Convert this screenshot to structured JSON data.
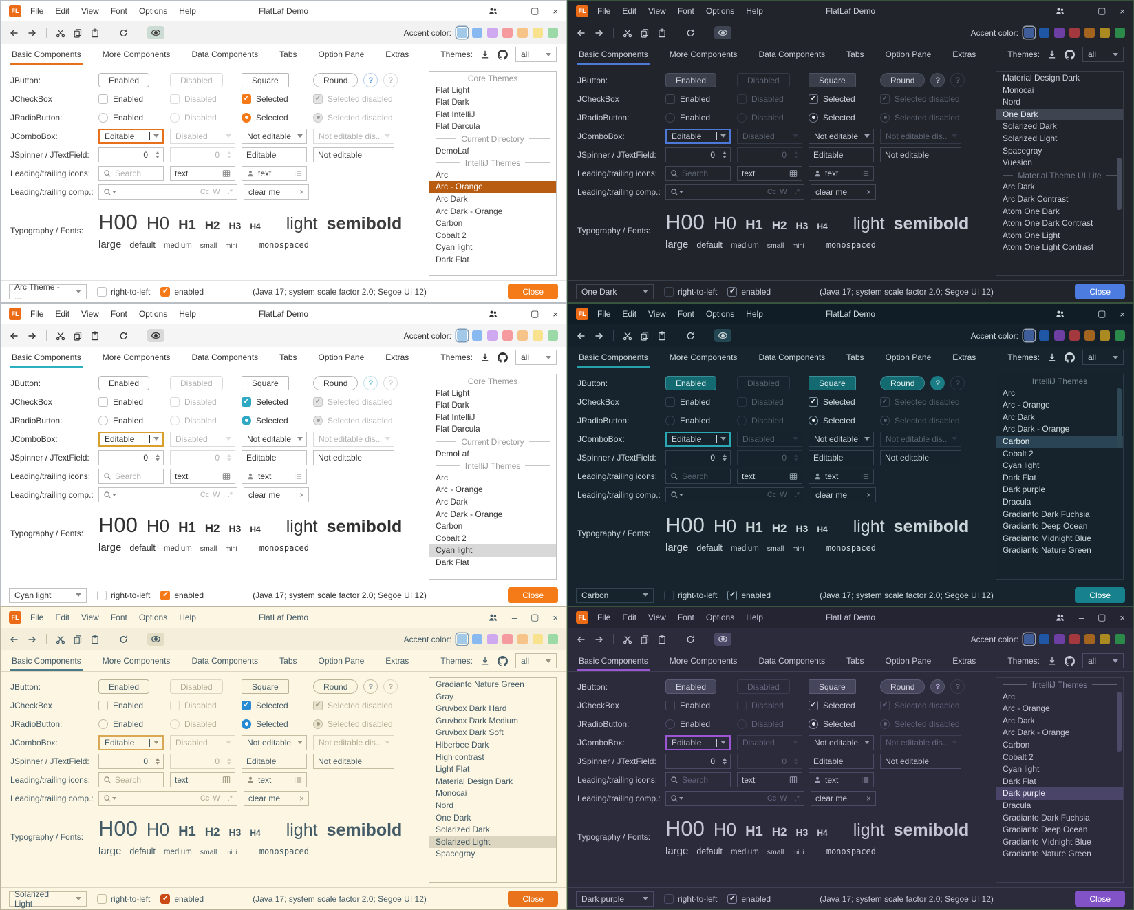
{
  "window": {
    "logo": "FL",
    "title": "FlatLaf Demo",
    "menus": [
      "File",
      "Edit",
      "View",
      "Font",
      "Options",
      "Help"
    ],
    "controls": {
      "minimize": "–",
      "maximize": "▢",
      "close": "×"
    }
  },
  "toolbar": {
    "accent_label": "Accent color:"
  },
  "tabs": [
    "Basic Components",
    "More Components",
    "Data Components",
    "Tabs",
    "Option Pane",
    "Extras"
  ],
  "themes_panel": {
    "label": "Themes:",
    "filter": "all"
  },
  "rows": {
    "jbutton": {
      "label": "JButton:",
      "enabled": "Enabled",
      "disabled": "Disabled",
      "square": "Square",
      "round": "Round",
      "help": "?"
    },
    "jcheckbox": {
      "label": "JCheckBox",
      "enabled": "Enabled",
      "disabled": "Disabled",
      "selected": "Selected",
      "selected_disabled": "Selected disabled"
    },
    "jradiobutton": {
      "label": "JRadioButton:",
      "enabled": "Enabled",
      "disabled": "Disabled",
      "selected": "Selected",
      "selected_disabled": "Selected disabled"
    },
    "jcombobox": {
      "label": "JComboBox:",
      "editable": "Editable",
      "disabled": "Disabled",
      "not_editable": "Not editable",
      "not_editable_disabled": "Not editable dis..."
    },
    "jspinner": {
      "label": "JSpinner / JTextField:",
      "value": "0",
      "editable": "Editable",
      "not_editable": "Not editable"
    },
    "icons_row": {
      "label": "Leading/trailing icons:",
      "search_placeholder": "Search",
      "text1": "text",
      "text2": "text"
    },
    "comp_row": {
      "label": "Leading/trailing comp.:",
      "match_case": "Cc",
      "whole_word": "W",
      "regex": ".*",
      "clear_value": "clear me",
      "clear_icon": "×"
    },
    "typography": {
      "label": "Typography / Fonts:",
      "samples": [
        "H00",
        "H0",
        "H1",
        "H2",
        "H3",
        "H4"
      ],
      "light": "light",
      "semibold": "semibold",
      "sizes": [
        "large",
        "default",
        "medium",
        "small",
        "mini"
      ],
      "monospaced": "monospaced"
    }
  },
  "statusbar": {
    "rtl": "right-to-left",
    "enabled": "enabled",
    "info": "(Java 17;  system scale factor 2.0; Segoe UI 12)",
    "close": "Close"
  },
  "icons": {
    "titlebar": [
      "users-icon",
      "minimize-icon",
      "maximize-icon",
      "close-icon"
    ],
    "toolbar": [
      "back-icon",
      "forward-icon",
      "cut-icon",
      "copy-icon",
      "paste-icon",
      "refresh-icon",
      "eye-icon"
    ],
    "themes": [
      "download-icon",
      "github-icon"
    ],
    "fields": [
      "search-icon",
      "table-icon",
      "person-icon",
      "list-icon"
    ]
  },
  "panels": [
    {
      "theme": "Arc - Orange",
      "mode": "light",
      "combo_value": "Arc Theme - ...",
      "swatches": [
        "#a3c9e8",
        "#89b9f1",
        "#cfa9f0",
        "#f59ba0",
        "#f6c488",
        "#f8e28d",
        "#9bd9a6"
      ],
      "scrollbar": {
        "visible": false,
        "thumb_top": "0%",
        "thumb_height": "0%"
      },
      "theme_list": [
        {
          "label": "Core Themes",
          "header": true
        },
        {
          "label": "Flat Light"
        },
        {
          "label": "Flat Dark"
        },
        {
          "label": "Flat IntelliJ"
        },
        {
          "label": "Flat Darcula"
        },
        {
          "label": "Current Directory",
          "header": true
        },
        {
          "label": "DemoLaf"
        },
        {
          "label": "IntelliJ Themes",
          "header": true
        },
        {
          "label": "Arc"
        },
        {
          "label": "Arc - Orange",
          "selected": true
        },
        {
          "label": "Arc Dark"
        },
        {
          "label": "Arc Dark - Orange"
        },
        {
          "label": "Carbon"
        },
        {
          "label": "Cobalt 2"
        },
        {
          "label": "Cyan light"
        },
        {
          "label": "Dark Flat"
        }
      ],
      "colors": {
        "win-border": "#b9bec4",
        "bg": "#ffffff",
        "titlebar-bg": "#ffffff",
        "toolbar-bg": "#f2f2f2",
        "fg": "#3d3d3d",
        "muted": "#b3b3b3",
        "rule": "#e2e2e2",
        "border": "#c2c2c2",
        "dis-border": "#dcdcdc",
        "field-bg": "#ffffff",
        "btn-bg": "#ffffff",
        "btn-fg": "#3d3d3d",
        "btn-border": "#b8b8b8",
        "accent": "#e8701a",
        "focus": "#e8701a",
        "check-bg": "#f57917",
        "check-bdr": "#f57917",
        "check-fg": "#ffffff",
        "check-dis-bg": "#e4e4e4",
        "check-dis-bdr": "#c8c8c8",
        "check-dis-fg": "#9e9e9e",
        "sel-bg": "#b85c12",
        "sel-fg": "#ffffff",
        "close-bg": "#f47b17",
        "help-bg": "#ffffff",
        "help-fg": "#478fe0",
        "help-border": "#b8cfee",
        "toggle-bg": "#ccdcd4",
        "list-border": "#c2c2c2",
        "header-fg": "#999999",
        "swatch-ring": "#7e9cb5",
        "scroll-thumb": "#cccccc",
        "arrow": "#8a8a8a",
        "status-check-bg": "#f57917",
        "status-check-bdr": "#f57917",
        "status-check-fg": "#ffffff"
      }
    },
    {
      "theme": "One Dark",
      "mode": "dark",
      "combo_value": "One Dark",
      "swatches": [
        "#3f5e99",
        "#2056a6",
        "#6e3fa3",
        "#a3383e",
        "#a3641f",
        "#ab8b21",
        "#2b8a4a"
      ],
      "scrollbar": {
        "visible": true,
        "thumb_top": "42%",
        "thumb_height": "26%"
      },
      "theme_list": [
        {
          "label": "Material Design Dark"
        },
        {
          "label": "Monocai"
        },
        {
          "label": "Nord"
        },
        {
          "label": "One Dark",
          "selected": true
        },
        {
          "label": "Solarized Dark"
        },
        {
          "label": "Solarized Light"
        },
        {
          "label": "Spacegray"
        },
        {
          "label": "Vuesion"
        },
        {
          "label": "Material Theme UI Lite",
          "header": true
        },
        {
          "label": "Arc Dark"
        },
        {
          "label": "Arc Dark Contrast"
        },
        {
          "label": "Atom One Dark"
        },
        {
          "label": "Atom One Dark Contrast"
        },
        {
          "label": "Atom One Light"
        },
        {
          "label": "Atom One Light Contrast"
        }
      ],
      "colors": {
        "win-border": "#39543c",
        "bg": "#21252b",
        "titlebar-bg": "#21252b",
        "toolbar-bg": "#21252b",
        "fg": "#c8cdd7",
        "muted": "#5c6370",
        "rule": "#383e48",
        "border": "#404652",
        "dis-border": "#333945",
        "field-bg": "#21252b",
        "btn-bg": "#3a3f4b",
        "btn-fg": "#d3d8e2",
        "btn-border": "#4a5160",
        "accent": "#4d7ad8",
        "focus": "#4d7ad8",
        "check-bg": "#21252b",
        "check-bdr": "#6d7585",
        "check-fg": "#e3e8f2",
        "check-dis-bg": "#21252b",
        "check-dis-bdr": "#3c434f",
        "check-dis-fg": "#5c6370",
        "sel-bg": "#3e4450",
        "sel-fg": "#e3e8f2",
        "close-bg": "#4d7ce0",
        "help-bg": "#3a3f4b",
        "help-fg": "#c8cdd7",
        "help-border": "#4a5160",
        "toggle-bg": "#3e4452",
        "list-border": "#383e48",
        "header-fg": "#767e8c",
        "swatch-ring": "#99a2b2",
        "scroll-thumb": "#464d5c",
        "arrow": "#9aa0ad",
        "status-check-bg": "#21252b",
        "status-check-bdr": "#6d7585",
        "status-check-fg": "#e3e8f2"
      }
    },
    {
      "theme": "Cyan light",
      "mode": "light",
      "combo_value": "Cyan light",
      "swatches": [
        "#a3c9e8",
        "#89b9f1",
        "#cfa9f0",
        "#f59ba0",
        "#f6c488",
        "#f8e28d",
        "#9bd9a6"
      ],
      "scrollbar": {
        "visible": false,
        "thumb_top": "0%",
        "thumb_height": "0%"
      },
      "theme_list": [
        {
          "label": "Core Themes",
          "header": true
        },
        {
          "label": "Flat Light"
        },
        {
          "label": "Flat Dark"
        },
        {
          "label": "Flat IntelliJ"
        },
        {
          "label": "Flat Darcula"
        },
        {
          "label": "Current Directory",
          "header": true
        },
        {
          "label": "DemoLaf"
        },
        {
          "label": "IntelliJ Themes",
          "header": true
        },
        {
          "label": "Arc"
        },
        {
          "label": "Arc - Orange"
        },
        {
          "label": "Arc Dark"
        },
        {
          "label": "Arc Dark - Orange"
        },
        {
          "label": "Carbon"
        },
        {
          "label": "Cobalt 2"
        },
        {
          "label": "Cyan light",
          "selected": true
        },
        {
          "label": "Dark Flat"
        }
      ],
      "colors": {
        "win-border": "#b9bec4",
        "bg": "#ffffff",
        "titlebar-bg": "#ffffff",
        "toolbar-bg": "#f5f5f5",
        "fg": "#303030",
        "muted": "#b3b3b3",
        "rule": "#e2e2e2",
        "border": "#c2c2c2",
        "dis-border": "#dcdcdc",
        "field-bg": "#ffffff",
        "btn-bg": "#ffffff",
        "btn-fg": "#303030",
        "btn-border": "#b8b8b8",
        "accent": "#2ab0c0",
        "focus": "#d99f2b",
        "check-bg": "#2fa8c4",
        "check-bdr": "#2fa8c4",
        "check-fg": "#ffffff",
        "check-dis-bg": "#e4e4e4",
        "check-dis-bdr": "#c8c8c8",
        "check-dis-fg": "#9e9e9e",
        "sel-bg": "#d8d8d8",
        "sel-fg": "#303030",
        "close-bg": "#f47b17",
        "help-bg": "#ffffff",
        "help-fg": "#2fa8c4",
        "help-border": "#bfe2e8",
        "toggle-bg": "#d9d9d9",
        "list-border": "#c2c2c2",
        "header-fg": "#999999",
        "swatch-ring": "#7e9cb5",
        "scroll-thumb": "#cccccc",
        "arrow": "#8a8a8a",
        "status-check-bg": "#f57917",
        "status-check-bdr": "#f57917",
        "status-check-fg": "#ffffff"
      }
    },
    {
      "theme": "Carbon",
      "mode": "dark",
      "combo_value": "Carbon",
      "swatches": [
        "#3f5e99",
        "#2056a6",
        "#6e3fa3",
        "#a3383e",
        "#a3641f",
        "#ab8b21",
        "#2b8a4a"
      ],
      "scrollbar": {
        "visible": true,
        "thumb_top": "6%",
        "thumb_height": "30%"
      },
      "theme_list": [
        {
          "label": "IntelliJ Themes",
          "header": true
        },
        {
          "label": "Arc"
        },
        {
          "label": "Arc - Orange"
        },
        {
          "label": "Arc Dark"
        },
        {
          "label": "Arc Dark - Orange"
        },
        {
          "label": "Carbon",
          "selected": true
        },
        {
          "label": "Cobalt 2"
        },
        {
          "label": "Cyan light"
        },
        {
          "label": "Dark Flat"
        },
        {
          "label": "Dark purple"
        },
        {
          "label": "Dracula"
        },
        {
          "label": "Gradianto Dark Fuchsia"
        },
        {
          "label": "Gradianto Deep Ocean"
        },
        {
          "label": "Gradianto Midnight Blue"
        },
        {
          "label": "Gradianto Nature Green"
        }
      ],
      "colors": {
        "win-border": "#39543c",
        "bg": "#17242e",
        "titlebar-bg": "#101c26",
        "toolbar-bg": "#14212b",
        "fg": "#ccd6da",
        "muted": "#54626c",
        "rule": "#2b3c46",
        "border": "#334450",
        "dis-border": "#283945",
        "field-bg": "#16232d",
        "btn-bg": "#146a71",
        "btn-fg": "#e6f2f2",
        "btn-border": "#3b8e95",
        "accent": "#27a2ad",
        "focus": "#2aa8b4",
        "check-bg": "#16232d",
        "check-bdr": "#7e97a2",
        "check-fg": "#e8f2f4",
        "check-dis-bg": "#16232d",
        "check-dis-bdr": "#34464f",
        "check-dis-fg": "#54626c",
        "sel-bg": "#2a4455",
        "sel-fg": "#e8f2f4",
        "close-bg": "#17828d",
        "help-bg": "#1b7d86",
        "help-fg": "#e8f2f4",
        "help-border": "#1b7d86",
        "toggle-bg": "#234853",
        "list-border": "#2b3c46",
        "header-fg": "#75878f",
        "swatch-ring": "#99a2b2",
        "scroll-thumb": "#2f4856",
        "arrow": "#8fa0a8",
        "status-check-bg": "#16232d",
        "status-check-bdr": "#7e97a2",
        "status-check-fg": "#e8f2f4"
      }
    },
    {
      "theme": "Solarized Light",
      "mode": "light",
      "combo_value": "Solarized Light",
      "swatches": [
        "#a3c9e8",
        "#89b9f1",
        "#cfa9f0",
        "#f59ba0",
        "#f6c488",
        "#f8e28d",
        "#9bd9a6"
      ],
      "scrollbar": {
        "visible": false,
        "thumb_top": "0%",
        "thumb_height": "0%"
      },
      "theme_list": [
        {
          "label": "Gradianto Nature Green"
        },
        {
          "label": "Gray"
        },
        {
          "label": "Gruvbox Dark Hard"
        },
        {
          "label": "Gruvbox Dark Medium"
        },
        {
          "label": "Gruvbox Dark Soft"
        },
        {
          "label": "Hiberbee Dark"
        },
        {
          "label": "High contrast"
        },
        {
          "label": "Light Flat"
        },
        {
          "label": "Material Design Dark"
        },
        {
          "label": "Monocai"
        },
        {
          "label": "Nord"
        },
        {
          "label": "One Dark"
        },
        {
          "label": "Solarized Dark"
        },
        {
          "label": "Solarized Light",
          "selected": true
        },
        {
          "label": "Spacegray"
        }
      ],
      "colors": {
        "win-border": "#b9b49c",
        "bg": "#fdf6e3",
        "titlebar-bg": "#fdf6e3",
        "toolbar-bg": "#f4eedb",
        "fg": "#435b66",
        "muted": "#b4ac92",
        "rule": "#ddd6bf",
        "border": "#c5bda2",
        "dis-border": "#ddd6bf",
        "field-bg": "#fdf6e3",
        "btn-bg": "#fbf4df",
        "btn-fg": "#435b66",
        "btn-border": "#bcb498",
        "accent": "#4a7a87",
        "focus": "#d9a855",
        "check-bg": "#268bd2",
        "check-bdr": "#268bd2",
        "check-fg": "#ffffff",
        "check-dis-bg": "#e8e1cc",
        "check-dis-bdr": "#c5bda2",
        "check-dis-fg": "#a39b80",
        "sel-bg": "#dcd5bf",
        "sel-fg": "#37505c",
        "close-bg": "#e8731a",
        "help-bg": "#fdf6e3",
        "help-fg": "#8a98a0",
        "help-border": "#c5bda2",
        "toggle-bg": "#e4ddc6",
        "list-border": "#c5bda2",
        "header-fg": "#a29a7f",
        "swatch-ring": "#7e9cb5",
        "scroll-thumb": "#cccccc",
        "arrow": "#9a927a",
        "status-check-bg": "#cb4b16",
        "status-check-bdr": "#cb4b16",
        "status-check-fg": "#ffffff"
      }
    },
    {
      "theme": "Dark purple",
      "mode": "dark",
      "combo_value": "Dark purple",
      "swatches": [
        "#3f5e99",
        "#2056a6",
        "#6e3fa3",
        "#a3383e",
        "#a3641f",
        "#ab8b21",
        "#2b8a4a"
      ],
      "scrollbar": {
        "visible": true,
        "thumb_top": "6%",
        "thumb_height": "30%"
      },
      "theme_list": [
        {
          "label": "IntelliJ Themes",
          "header": true
        },
        {
          "label": "Arc"
        },
        {
          "label": "Arc - Orange"
        },
        {
          "label": "Arc Dark"
        },
        {
          "label": "Arc Dark - Orange"
        },
        {
          "label": "Carbon"
        },
        {
          "label": "Cobalt 2"
        },
        {
          "label": "Cyan light"
        },
        {
          "label": "Dark Flat"
        },
        {
          "label": "Dark purple",
          "selected": true
        },
        {
          "label": "Dracula"
        },
        {
          "label": "Gradianto Dark Fuchsia"
        },
        {
          "label": "Gradianto Deep Ocean"
        },
        {
          "label": "Gradianto Midnight Blue"
        },
        {
          "label": "Gradianto Nature Green"
        }
      ],
      "colors": {
        "win-border": "#39543c",
        "bg": "#2b2b3b",
        "titlebar-bg": "#242432",
        "toolbar-bg": "#2b2b3b",
        "fg": "#c6c6d6",
        "muted": "#64647e",
        "rule": "#3e3e54",
        "border": "#4b4b66",
        "dis-border": "#3c3c52",
        "field-bg": "#2b2b3b",
        "btn-bg": "#45455c",
        "btn-fg": "#d6d6e4",
        "btn-border": "#5b5b76",
        "accent": "#9b57d3",
        "focus": "#9b57d3",
        "check-bg": "#2b2b3b",
        "check-bdr": "#81819c",
        "check-fg": "#e6e6f2",
        "check-dis-bg": "#2b2b3b",
        "check-dis-bdr": "#44445c",
        "check-dis-fg": "#64647e",
        "sel-bg": "#4a4568",
        "sel-fg": "#eaeaf6",
        "close-bg": "#8252c7",
        "help-bg": "#45455c",
        "help-fg": "#c8b4e8",
        "help-border": "#5b5b76",
        "toggle-bg": "#4c4966",
        "list-border": "#3e3e54",
        "header-fg": "#8a8aa2",
        "swatch-ring": "#99a2b2",
        "scroll-thumb": "#4b4b68",
        "arrow": "#9c9cb4",
        "status-check-bg": "#2b2b3b",
        "status-check-bdr": "#81819c",
        "status-check-fg": "#e6e6f2"
      }
    }
  ]
}
